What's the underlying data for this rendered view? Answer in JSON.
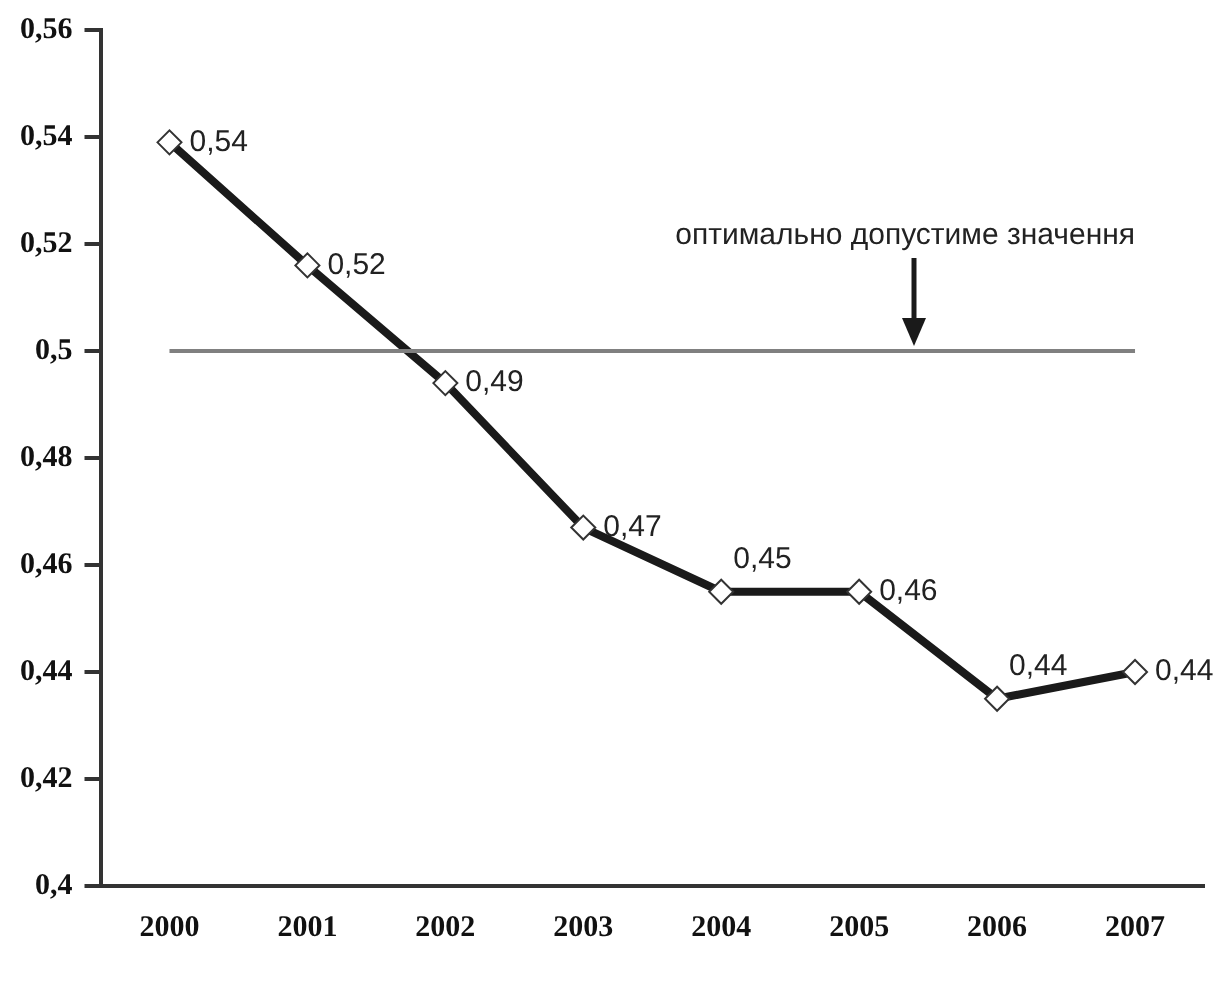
{
  "chart_data": {
    "type": "line",
    "categories": [
      "2000",
      "2001",
      "2002",
      "2003",
      "2004",
      "2005",
      "2006",
      "2007"
    ],
    "values": [
      0.539,
      0.516,
      0.494,
      0.467,
      0.455,
      0.455,
      0.435,
      0.44
    ],
    "value_labels": [
      "0,54",
      "0,52",
      "0,49",
      "0,47",
      "0,45",
      "0,46",
      "0,44",
      "0,44"
    ],
    "color": "#1a1a1a",
    "marker": "diamond",
    "line_style": "solid",
    "grid": false,
    "legend": false,
    "ylim": [
      0.4,
      0.56
    ],
    "yticks": [
      {
        "value": 0.4,
        "label": "0,4"
      },
      {
        "value": 0.42,
        "label": "0,42"
      },
      {
        "value": 0.44,
        "label": "0,44"
      },
      {
        "value": 0.46,
        "label": "0,46"
      },
      {
        "value": 0.48,
        "label": "0,48"
      },
      {
        "value": 0.5,
        "label": "0,5"
      },
      {
        "value": 0.52,
        "label": "0,52"
      },
      {
        "value": 0.54,
        "label": "0,54"
      },
      {
        "value": 0.56,
        "label": "0,56"
      }
    ],
    "annotations": [
      "оптимально допустиме значення"
    ],
    "ref_lines": [
      {
        "axis": "y",
        "value": 0.5,
        "color": "#808080",
        "line_style": "solid"
      }
    ]
  }
}
